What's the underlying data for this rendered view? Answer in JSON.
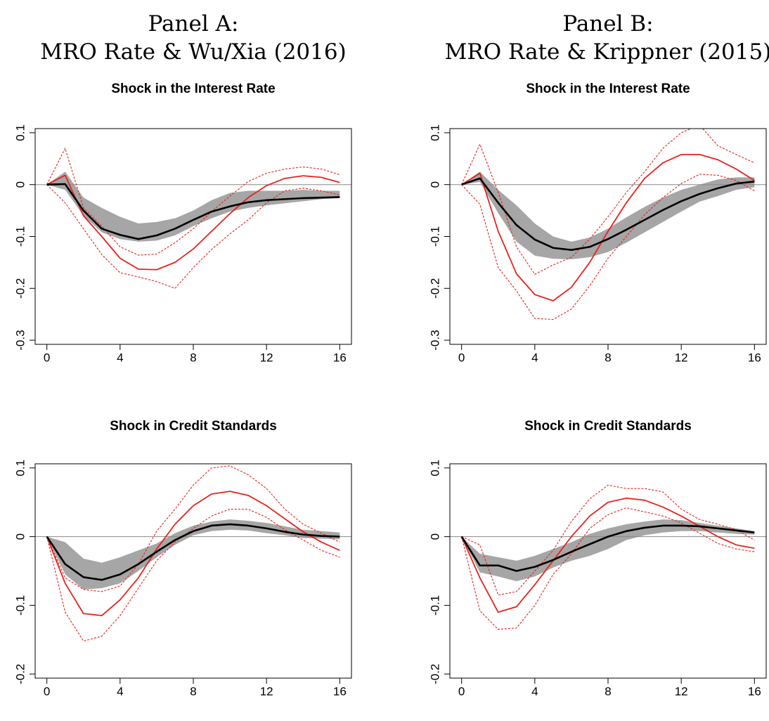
{
  "panels": [
    {
      "title": "Panel A:",
      "subtitle": "MRO Rate & Wu/Xia (2016)"
    },
    {
      "title": "Panel B:",
      "subtitle": "MRO Rate & Krippner (2015)"
    }
  ],
  "chart_data": [
    {
      "type": "line",
      "title": "Shock in the Interest Rate",
      "x": [
        0,
        1,
        2,
        3,
        4,
        5,
        6,
        7,
        8,
        9,
        10,
        11,
        12,
        13,
        14,
        15,
        16
      ],
      "xlim": [
        -0.64,
        16.64
      ],
      "xticks": [
        0,
        4,
        8,
        12,
        16
      ],
      "ylim": [
        -0.308,
        0.108
      ],
      "yticks": [
        -0.3,
        -0.2,
        -0.1,
        0,
        0.1
      ],
      "hline": 0,
      "band": {
        "color": "#a6a6a6",
        "lower": [
          0,
          -0.01,
          -0.06,
          -0.092,
          -0.105,
          -0.11,
          -0.108,
          -0.098,
          -0.08,
          -0.065,
          -0.052,
          -0.045,
          -0.04,
          -0.036,
          -0.032,
          -0.028,
          -0.026
        ],
        "upper": [
          0,
          0.025,
          -0.025,
          -0.045,
          -0.062,
          -0.075,
          -0.072,
          -0.065,
          -0.05,
          -0.03,
          -0.016,
          -0.012,
          -0.012,
          -0.012,
          -0.01,
          -0.012,
          -0.012
        ]
      },
      "series": [
        {
          "color": "#000000",
          "style": "solid",
          "values": [
            0,
            0.001,
            -0.05,
            -0.085,
            -0.097,
            -0.105,
            -0.098,
            -0.085,
            -0.068,
            -0.052,
            -0.042,
            -0.034,
            -0.03,
            -0.028,
            -0.026,
            -0.025,
            -0.024
          ]
        },
        {
          "color": "#e8221c",
          "style": "solid",
          "values": [
            0,
            0.018,
            -0.06,
            -0.1,
            -0.142,
            -0.163,
            -0.164,
            -0.15,
            -0.124,
            -0.09,
            -0.056,
            -0.025,
            -0.002,
            0.012,
            0.017,
            0.014,
            0.004
          ]
        },
        {
          "color": "#e8221c",
          "style": "dashed",
          "values": [
            0,
            0.07,
            -0.045,
            -0.08,
            -0.12,
            -0.136,
            -0.134,
            -0.112,
            -0.085,
            -0.052,
            -0.022,
            0.006,
            0.022,
            0.03,
            0.034,
            0.03,
            0.019
          ]
        },
        {
          "color": "#e8221c",
          "style": "dashed",
          "values": [
            0,
            -0.035,
            -0.085,
            -0.135,
            -0.17,
            -0.178,
            -0.187,
            -0.2,
            -0.16,
            -0.125,
            -0.095,
            -0.068,
            -0.035,
            -0.012,
            -0.007,
            -0.012,
            -0.02
          ]
        }
      ]
    },
    {
      "type": "line",
      "title": "Shock in the Interest Rate",
      "x": [
        0,
        1,
        2,
        3,
        4,
        5,
        6,
        7,
        8,
        9,
        10,
        11,
        12,
        13,
        14,
        15,
        16
      ],
      "xlim": [
        -0.64,
        16.64
      ],
      "xticks": [
        0,
        4,
        8,
        12,
        16
      ],
      "ylim": [
        -0.308,
        0.108
      ],
      "yticks": [
        -0.3,
        -0.2,
        -0.1,
        0,
        0.1
      ],
      "hline": 0,
      "band": {
        "color": "#a6a6a6",
        "lower": [
          0,
          0.005,
          -0.055,
          -0.11,
          -0.137,
          -0.143,
          -0.144,
          -0.14,
          -0.13,
          -0.112,
          -0.092,
          -0.072,
          -0.052,
          -0.033,
          -0.022,
          -0.01,
          -0.005
        ],
        "upper": [
          0,
          0.025,
          -0.01,
          -0.04,
          -0.075,
          -0.1,
          -0.11,
          -0.102,
          -0.085,
          -0.063,
          -0.043,
          -0.025,
          -0.01,
          0,
          0.01,
          0.014,
          0.014
        ]
      },
      "series": [
        {
          "color": "#000000",
          "style": "solid",
          "values": [
            0,
            0.012,
            -0.035,
            -0.078,
            -0.106,
            -0.122,
            -0.126,
            -0.12,
            -0.105,
            -0.087,
            -0.068,
            -0.049,
            -0.032,
            -0.018,
            -0.007,
            0.002,
            0.006
          ]
        },
        {
          "color": "#e8221c",
          "style": "solid",
          "values": [
            0,
            0.022,
            -0.09,
            -0.172,
            -0.212,
            -0.224,
            -0.198,
            -0.15,
            -0.09,
            -0.035,
            0.012,
            0.042,
            0.058,
            0.058,
            0.048,
            0.03,
            0.008
          ]
        },
        {
          "color": "#e8221c",
          "style": "dashed",
          "values": [
            0,
            0.078,
            -0.015,
            -0.12,
            -0.173,
            -0.155,
            -0.14,
            -0.105,
            -0.062,
            -0.015,
            0.025,
            0.07,
            0.1,
            0.115,
            0.075,
            0.058,
            0.042
          ]
        },
        {
          "color": "#e8221c",
          "style": "dashed",
          "values": [
            0,
            -0.038,
            -0.16,
            -0.205,
            -0.258,
            -0.26,
            -0.24,
            -0.195,
            -0.142,
            -0.1,
            -0.058,
            -0.025,
            0.002,
            0.02,
            0.018,
            0.008,
            -0.012
          ]
        }
      ]
    },
    {
      "type": "line",
      "title": "Shock in Credit Standards",
      "x": [
        0,
        1,
        2,
        3,
        4,
        5,
        6,
        7,
        8,
        9,
        10,
        11,
        12,
        13,
        14,
        15,
        16
      ],
      "xlim": [
        -0.64,
        16.64
      ],
      "xticks": [
        0,
        4,
        8,
        12,
        16
      ],
      "ylim": [
        -0.206,
        0.106
      ],
      "yticks": [
        -0.2,
        -0.1,
        0,
        0.1
      ],
      "hline": 0,
      "band": {
        "color": "#a6a6a6",
        "lower": [
          0,
          -0.055,
          -0.077,
          -0.075,
          -0.068,
          -0.05,
          -0.03,
          -0.012,
          0.002,
          0.008,
          0.01,
          0.009,
          0.005,
          0.002,
          -0.002,
          -0.003,
          -0.004
        ],
        "upper": [
          0,
          -0.008,
          -0.032,
          -0.038,
          -0.03,
          -0.02,
          -0.01,
          0.005,
          0.016,
          0.022,
          0.025,
          0.023,
          0.02,
          0.015,
          0.01,
          0.008,
          0.006
        ]
      },
      "series": [
        {
          "color": "#000000",
          "style": "solid",
          "values": [
            0,
            -0.04,
            -0.059,
            -0.063,
            -0.055,
            -0.04,
            -0.022,
            -0.005,
            0.008,
            0.016,
            0.018,
            0.016,
            0.012,
            0.007,
            0.003,
            0.001,
            0
          ]
        },
        {
          "color": "#e8221c",
          "style": "solid",
          "values": [
            0,
            -0.068,
            -0.112,
            -0.115,
            -0.092,
            -0.06,
            -0.018,
            0.018,
            0.045,
            0.062,
            0.066,
            0.06,
            0.045,
            0.026,
            0.007,
            -0.008,
            -0.02
          ]
        },
        {
          "color": "#e8221c",
          "style": "dashed",
          "values": [
            0,
            -0.06,
            -0.077,
            -0.08,
            -0.072,
            -0.04,
            0.008,
            0.04,
            0.075,
            0.1,
            0.103,
            0.09,
            0.07,
            0.04,
            0.018,
            0.005,
            -0.008
          ]
        },
        {
          "color": "#e8221c",
          "style": "dashed",
          "values": [
            0,
            -0.11,
            -0.152,
            -0.145,
            -0.115,
            -0.075,
            -0.035,
            -0.008,
            0.012,
            0.03,
            0.04,
            0.04,
            0.028,
            0.01,
            -0.005,
            -0.02,
            -0.03
          ]
        }
      ]
    },
    {
      "type": "line",
      "title": "Shock in Credit Standards",
      "x": [
        0,
        1,
        2,
        3,
        4,
        5,
        6,
        7,
        8,
        9,
        10,
        11,
        12,
        13,
        14,
        15,
        16
      ],
      "xlim": [
        -0.64,
        16.64
      ],
      "xticks": [
        0,
        4,
        8,
        12,
        16
      ],
      "ylim": [
        -0.206,
        0.106
      ],
      "yticks": [
        -0.2,
        -0.1,
        0,
        0.1
      ],
      "hline": 0,
      "band": {
        "color": "#a6a6a6",
        "lower": [
          0,
          -0.052,
          -0.058,
          -0.065,
          -0.058,
          -0.045,
          -0.035,
          -0.028,
          -0.018,
          -0.005,
          0.002,
          0.006,
          0.008,
          0.008,
          0.006,
          0.004,
          0.003
        ],
        "upper": [
          0,
          -0.025,
          -0.03,
          -0.035,
          -0.028,
          -0.018,
          -0.008,
          0.004,
          0.012,
          0.018,
          0.022,
          0.025,
          0.024,
          0.02,
          0.016,
          0.012,
          0.008
        ]
      },
      "series": [
        {
          "color": "#000000",
          "style": "solid",
          "values": [
            0,
            -0.042,
            -0.042,
            -0.05,
            -0.044,
            -0.034,
            -0.022,
            -0.011,
            0,
            0.008,
            0.013,
            0.016,
            0.016,
            0.015,
            0.012,
            0.009,
            0.006
          ]
        },
        {
          "color": "#e8221c",
          "style": "solid",
          "values": [
            0,
            -0.06,
            -0.11,
            -0.102,
            -0.07,
            -0.035,
            0,
            0.03,
            0.05,
            0.056,
            0.053,
            0.043,
            0.03,
            0.015,
            0,
            -0.012,
            -0.017
          ]
        },
        {
          "color": "#e8221c",
          "style": "dashed",
          "values": [
            0,
            -0.012,
            -0.085,
            -0.08,
            -0.05,
            -0.02,
            0.022,
            0.055,
            0.075,
            0.07,
            0.07,
            0.065,
            0.04,
            0.025,
            0.018,
            0.01,
            -0.005
          ]
        },
        {
          "color": "#e8221c",
          "style": "dashed",
          "values": [
            0,
            -0.108,
            -0.135,
            -0.133,
            -0.1,
            -0.055,
            -0.025,
            0.012,
            0.032,
            0.042,
            0.036,
            0.03,
            0.02,
            0.005,
            -0.01,
            -0.018,
            -0.022
          ]
        }
      ]
    }
  ]
}
